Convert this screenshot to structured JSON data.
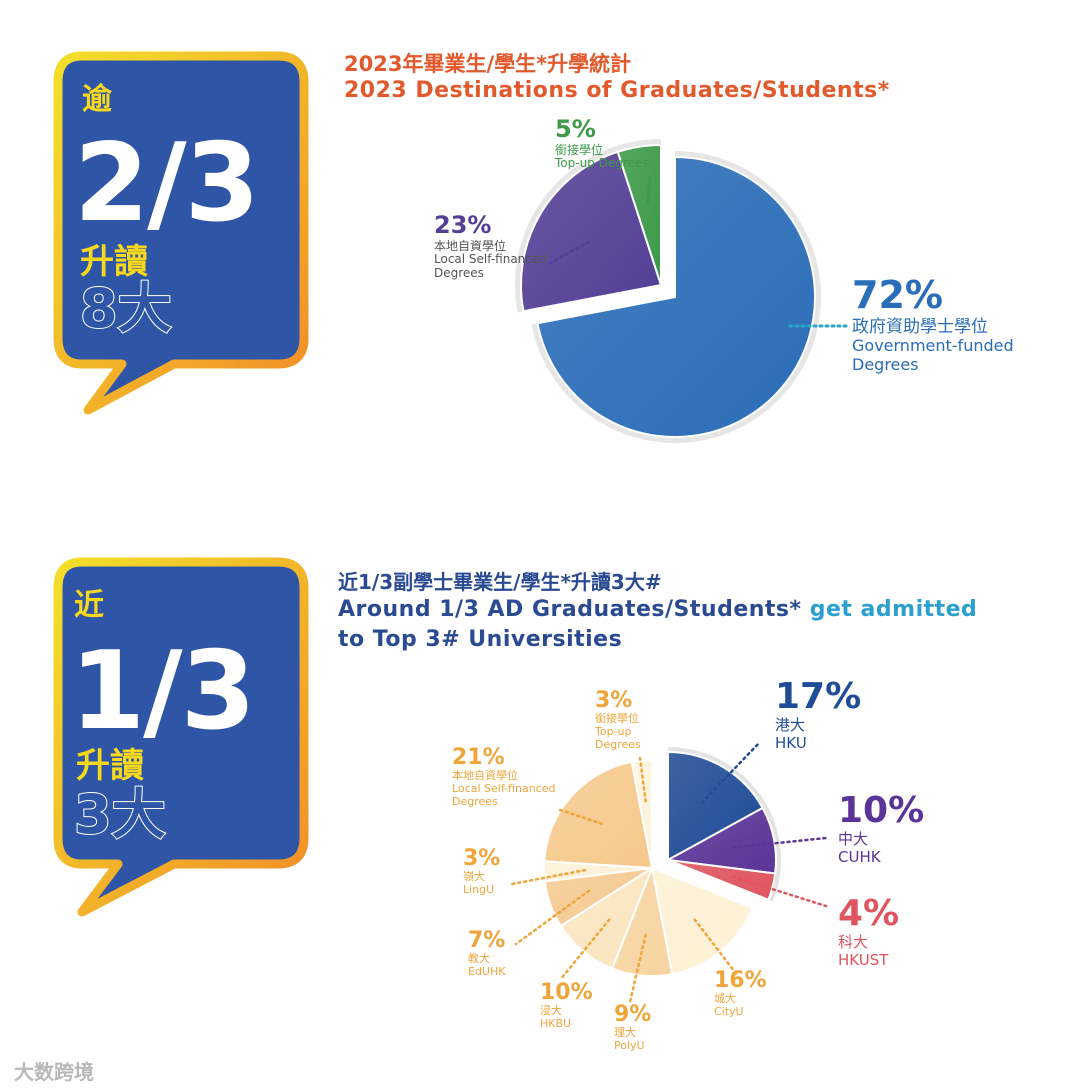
{
  "section1": {
    "bubble": {
      "prefix": "逾",
      "big": "2/3",
      "verb": "升讀",
      "target": "8大"
    },
    "title_zh": "2023年畢業生/學生*升學統計",
    "title_en": "2023 Destinations of Graduates/Students*"
  },
  "section2": {
    "bubble": {
      "prefix": "近",
      "big": "1/3",
      "verb": "升讀",
      "target": "3大"
    },
    "title_zh": "近1/3副學士畢業生/學生*升讀3大#",
    "title_en_a": "Around 1/3 AD Graduates/Students*",
    "title_en_b": "get admitted",
    "title_en_c": "to Top 3# Universities"
  },
  "watermark": "大数跨境",
  "colors": {
    "bubble_fill": "#2f56a6",
    "bubble_border_start": "#f2e02a",
    "bubble_border_end": "#f28c28",
    "title_orange": "#e2592b",
    "title_blue": "#2a4a92",
    "accent_cyan": "#2a9fd0"
  },
  "chart_data": [
    {
      "type": "pie",
      "title": "2023 Destinations of Graduates/Students*",
      "series": [
        {
          "name": "Government-funded Degrees",
          "name_zh": "政府資助學士學位",
          "value": 72,
          "label": "72%",
          "color": "#2a6db8",
          "exploded": false
        },
        {
          "name": "Local Self-financed Degrees",
          "name_zh": "本地自資學位",
          "value": 23,
          "label": "23%",
          "color": "#533f96",
          "exploded": true
        },
        {
          "name": "Top-up Degrees",
          "name_zh": "銜接學位",
          "value": 5,
          "label": "5%",
          "color": "#3c9a48",
          "exploded": true
        }
      ]
    },
    {
      "type": "pie",
      "title": "Around 1/3 AD Graduates/Students* get admitted to Top 3# Universities",
      "series": [
        {
          "name": "HKU",
          "name_zh": "港大",
          "value": 17,
          "label": "17%",
          "color": "#1f4c97",
          "group": "top3"
        },
        {
          "name": "CUHK",
          "name_zh": "中大",
          "value": 10,
          "label": "10%",
          "color": "#5a3497",
          "group": "top3"
        },
        {
          "name": "HKUST",
          "name_zh": "科大",
          "value": 4,
          "label": "4%",
          "color": "#e0545f",
          "group": "top3"
        },
        {
          "name": "CityU",
          "name_zh": "城大",
          "value": 16,
          "label": "16%",
          "color": "#fdf1d4",
          "group": "others"
        },
        {
          "name": "PolyU",
          "name_zh": "理大",
          "value": 9,
          "label": "9%",
          "color": "#f7d4a0",
          "group": "others"
        },
        {
          "name": "HKBU",
          "name_zh": "浸大",
          "value": 10,
          "label": "10%",
          "color": "#fbe5bf",
          "group": "others"
        },
        {
          "name": "EdUHK",
          "name_zh": "教大",
          "value": 7,
          "label": "7%",
          "color": "#f5c990",
          "group": "others"
        },
        {
          "name": "LingU",
          "name_zh": "嶺大",
          "value": 3,
          "label": "3%",
          "color": "#fdf0d6",
          "group": "others"
        },
        {
          "name": "Local Self-financed Degrees",
          "name_zh": "本地自資學位",
          "value": 21,
          "label": "21%",
          "color": "#f6c98c",
          "group": "others"
        },
        {
          "name": "Top-up Degrees",
          "name_zh": "銜接學位",
          "value": 3,
          "label": "3%",
          "color": "#fdf3dd",
          "group": "others"
        }
      ]
    }
  ]
}
